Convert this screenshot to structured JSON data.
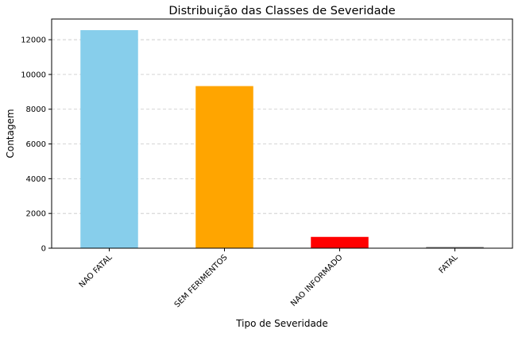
{
  "chart_data": {
    "type": "bar",
    "title": "Distribuição das Classes de Severidade",
    "xlabel": "Tipo de Severidade",
    "ylabel": "Contagem",
    "categories": [
      "NAO FATAL",
      "SEM FERIMENTOS",
      "NAO INFORMADO",
      "FATAL"
    ],
    "values": [
      12550,
      9330,
      650,
      70
    ],
    "colors": [
      "#87CEEB",
      "#FFA500",
      "#FF0000",
      "#808080"
    ],
    "ylim": [
      0,
      13190
    ],
    "yticks": [
      0,
      2000,
      4000,
      6000,
      8000,
      10000,
      12000
    ],
    "grid": "y-dashed",
    "legend": "none"
  }
}
